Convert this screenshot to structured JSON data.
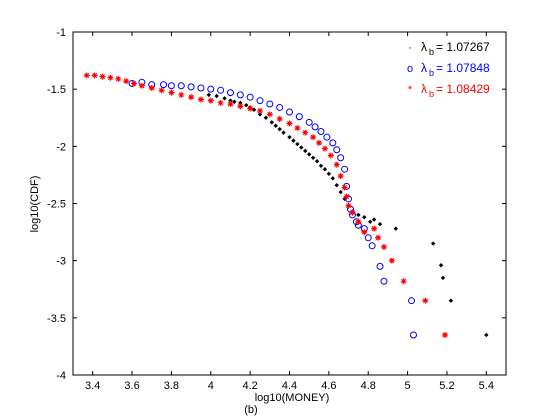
{
  "chart_data": {
    "type": "scatter",
    "xlabel": "log10(MONEY)",
    "ylabel": "log10(CDF)",
    "caption": "(b)",
    "xlim": [
      3.3,
      5.5
    ],
    "ylim": [
      -4,
      -1
    ],
    "x_ticks": [
      "3.4",
      "3.6",
      "3.8",
      "4",
      "4.2",
      "4.4",
      "4.6",
      "4.8",
      "5",
      "5.2",
      "5.4"
    ],
    "y_ticks": [
      "-1",
      "-1.5",
      "-2",
      "-2.5",
      "-3",
      "-3.5",
      "-4"
    ],
    "grid": false,
    "legend_position": "top-right",
    "series": [
      {
        "name": "λb= 1.07267",
        "legend_symbol": "·",
        "legend_prefix": "λ",
        "legend_sub": "b",
        "legend_value": "= 1.07267",
        "marker": "dot",
        "color": "#000000",
        "points": [
          [
            3.99,
            -1.55
          ],
          [
            4.03,
            -1.56
          ],
          [
            4.07,
            -1.58
          ],
          [
            4.1,
            -1.6
          ],
          [
            4.12,
            -1.61
          ],
          [
            4.15,
            -1.62
          ],
          [
            4.18,
            -1.64
          ],
          [
            4.2,
            -1.66
          ],
          [
            4.22,
            -1.68
          ],
          [
            4.25,
            -1.72
          ],
          [
            4.28,
            -1.75
          ],
          [
            4.31,
            -1.79
          ],
          [
            4.33,
            -1.82
          ],
          [
            4.35,
            -1.85
          ],
          [
            4.37,
            -1.88
          ],
          [
            4.4,
            -1.92
          ],
          [
            4.42,
            -1.95
          ],
          [
            4.44,
            -1.98
          ],
          [
            4.46,
            -2.01
          ],
          [
            4.48,
            -2.04
          ],
          [
            4.5,
            -2.07
          ],
          [
            4.52,
            -2.1
          ],
          [
            4.54,
            -2.13
          ],
          [
            4.56,
            -2.17
          ],
          [
            4.58,
            -2.2
          ],
          [
            4.6,
            -2.24
          ],
          [
            4.62,
            -2.28
          ],
          [
            4.64,
            -2.34
          ],
          [
            4.66,
            -2.4
          ],
          [
            4.68,
            -2.46
          ],
          [
            4.7,
            -2.52
          ],
          [
            4.72,
            -2.57
          ],
          [
            4.75,
            -2.6
          ],
          [
            4.78,
            -2.62
          ],
          [
            4.81,
            -2.66
          ],
          [
            4.83,
            -2.64
          ],
          [
            4.86,
            -2.68
          ],
          [
            4.94,
            -2.72
          ],
          [
            5.13,
            -2.85
          ],
          [
            5.17,
            -3.04
          ],
          [
            5.18,
            -3.15
          ],
          [
            5.22,
            -3.35
          ],
          [
            5.4,
            -3.65
          ]
        ]
      },
      {
        "name": "λb= 1.07848",
        "legend_symbol": "o",
        "legend_prefix": "λ",
        "legend_sub": "b",
        "legend_value": "= 1.07848",
        "marker": "circle",
        "color": "#0000ff",
        "points": [
          [
            3.6,
            -1.45
          ],
          [
            3.65,
            -1.44
          ],
          [
            3.7,
            -1.46
          ],
          [
            3.76,
            -1.46
          ],
          [
            3.8,
            -1.47
          ],
          [
            3.85,
            -1.47
          ],
          [
            3.9,
            -1.48
          ],
          [
            3.95,
            -1.49
          ],
          [
            4,
            -1.5
          ],
          [
            4.05,
            -1.51
          ],
          [
            4.1,
            -1.53
          ],
          [
            4.15,
            -1.55
          ],
          [
            4.2,
            -1.57
          ],
          [
            4.25,
            -1.6
          ],
          [
            4.3,
            -1.63
          ],
          [
            4.35,
            -1.66
          ],
          [
            4.4,
            -1.7
          ],
          [
            4.45,
            -1.74
          ],
          [
            4.5,
            -1.79
          ],
          [
            4.53,
            -1.83
          ],
          [
            4.56,
            -1.87
          ],
          [
            4.59,
            -1.92
          ],
          [
            4.62,
            -1.97
          ],
          [
            4.64,
            -2.03
          ],
          [
            4.66,
            -2.1
          ],
          [
            4.68,
            -2.2
          ],
          [
            4.69,
            -2.35
          ],
          [
            4.7,
            -2.46
          ],
          [
            4.71,
            -2.55
          ],
          [
            4.72,
            -2.6
          ],
          [
            4.74,
            -2.66
          ],
          [
            4.75,
            -2.69
          ],
          [
            4.78,
            -2.72
          ],
          [
            4.8,
            -2.8
          ],
          [
            4.82,
            -2.87
          ],
          [
            4.86,
            -3.05
          ],
          [
            4.88,
            -3.18
          ],
          [
            5.02,
            -3.35
          ],
          [
            5.03,
            -3.65
          ]
        ]
      },
      {
        "name": "λb= 1.08429",
        "legend_symbol": "*",
        "legend_prefix": "λ",
        "legend_sub": "b",
        "legend_value": "= 1.08429",
        "marker": "star",
        "color": "#ff0000",
        "points": [
          [
            3.37,
            -1.38
          ],
          [
            3.41,
            -1.38
          ],
          [
            3.45,
            -1.39
          ],
          [
            3.49,
            -1.4
          ],
          [
            3.53,
            -1.41
          ],
          [
            3.57,
            -1.43
          ],
          [
            3.61,
            -1.45
          ],
          [
            3.65,
            -1.47
          ],
          [
            3.7,
            -1.49
          ],
          [
            3.75,
            -1.51
          ],
          [
            3.8,
            -1.53
          ],
          [
            3.85,
            -1.55
          ],
          [
            3.9,
            -1.57
          ],
          [
            3.95,
            -1.59
          ],
          [
            4,
            -1.6
          ],
          [
            4.05,
            -1.62
          ],
          [
            4.1,
            -1.63
          ],
          [
            4.15,
            -1.65
          ],
          [
            4.2,
            -1.67
          ],
          [
            4.25,
            -1.69
          ],
          [
            4.3,
            -1.72
          ],
          [
            4.35,
            -1.76
          ],
          [
            4.4,
            -1.8
          ],
          [
            4.44,
            -1.84
          ],
          [
            4.48,
            -1.88
          ],
          [
            4.52,
            -1.92
          ],
          [
            4.55,
            -1.97
          ],
          [
            4.58,
            -2.02
          ],
          [
            4.61,
            -2.08
          ],
          [
            4.64,
            -2.16
          ],
          [
            4.66,
            -2.26
          ],
          [
            4.68,
            -2.36
          ],
          [
            4.69,
            -2.44
          ],
          [
            4.7,
            -2.52
          ],
          [
            4.72,
            -2.58
          ],
          [
            4.75,
            -2.66
          ],
          [
            4.78,
            -2.75
          ],
          [
            4.83,
            -2.72
          ],
          [
            4.85,
            -2.8
          ],
          [
            4.88,
            -2.88
          ],
          [
            4.92,
            -3.0
          ],
          [
            4.98,
            -3.18
          ],
          [
            5.09,
            -3.35
          ],
          [
            5.19,
            -3.65
          ]
        ]
      }
    ]
  }
}
